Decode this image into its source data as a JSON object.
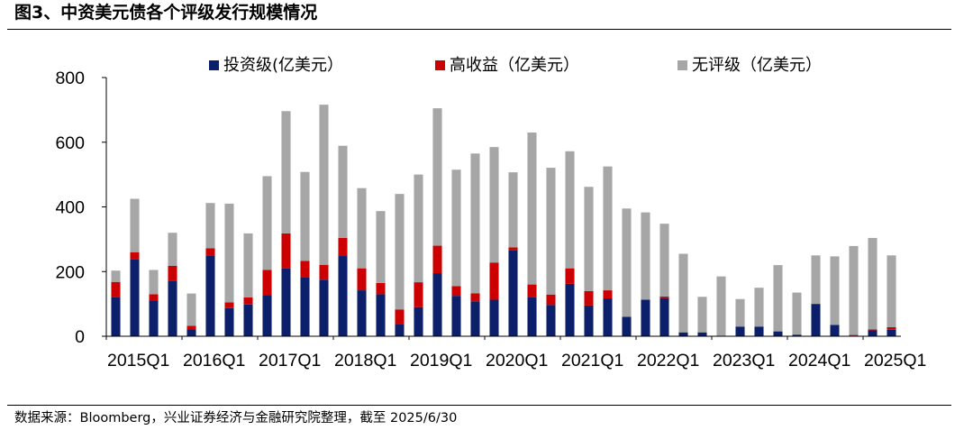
{
  "title": "图3、中资美元债各个评级发行规模情况",
  "source": "数据来源：Bloomberg，兴业证券经济与金融研究院整理，截至 2025/6/30",
  "chart_data": {
    "type": "bar",
    "stacked": true,
    "title": "",
    "xlabel": "",
    "ylabel": "",
    "ylim": [
      0,
      800
    ],
    "yticks": [
      0,
      200,
      400,
      600,
      800
    ],
    "legend_position": "top",
    "categories": [
      "2015Q1",
      "2015Q2",
      "2015Q3",
      "2015Q4",
      "2016Q1",
      "2016Q2",
      "2016Q3",
      "2016Q4",
      "2017Q1",
      "2017Q2",
      "2017Q3",
      "2017Q4",
      "2018Q1",
      "2018Q2",
      "2018Q3",
      "2018Q4",
      "2019Q1",
      "2019Q2",
      "2019Q3",
      "2019Q4",
      "2020Q1",
      "2020Q2",
      "2020Q3",
      "2020Q4",
      "2021Q1",
      "2021Q2",
      "2021Q3",
      "2021Q4",
      "2022Q1",
      "2022Q2",
      "2022Q3",
      "2022Q4",
      "2023Q1",
      "2023Q2",
      "2023Q3",
      "2023Q4",
      "2024Q1",
      "2024Q2",
      "2024Q3",
      "2024Q4",
      "2025Q1",
      "2025Q2"
    ],
    "xtick_labels": [
      "2015Q1",
      "2016Q1",
      "2017Q1",
      "2018Q1",
      "2019Q1",
      "2020Q1",
      "2021Q1",
      "2022Q1",
      "2023Q1",
      "2024Q1",
      "2025Q1"
    ],
    "series": [
      {
        "name": "投资级(亿美元）",
        "color": "#0c1f6b",
        "values": [
          120,
          238,
          110,
          172,
          22,
          250,
          87,
          98,
          127,
          210,
          183,
          175,
          248,
          142,
          130,
          38,
          90,
          195,
          125,
          108,
          113,
          265,
          120,
          97,
          162,
          95,
          117,
          60,
          113,
          118,
          12,
          12,
          0,
          30,
          30,
          15,
          5,
          100,
          35,
          2,
          18,
          20
        ]
      },
      {
        "name": "高收益（亿美元）",
        "color": "#cc0000",
        "values": [
          48,
          22,
          20,
          46,
          10,
          22,
          18,
          22,
          78,
          108,
          50,
          46,
          56,
          68,
          35,
          45,
          77,
          85,
          30,
          25,
          115,
          10,
          40,
          32,
          48,
          45,
          25,
          0,
          0,
          5,
          0,
          0,
          0,
          0,
          0,
          0,
          0,
          0,
          0,
          2,
          3,
          8
        ]
      },
      {
        "name": "无评级（亿美元）",
        "color": "#a6a6a6",
        "values": [
          35,
          165,
          75,
          102,
          100,
          140,
          305,
          198,
          290,
          378,
          275,
          495,
          285,
          248,
          222,
          357,
          333,
          425,
          360,
          432,
          357,
          232,
          470,
          392,
          362,
          322,
          383,
          335,
          270,
          225,
          243,
          110,
          185,
          85,
          120,
          205,
          130,
          150,
          212,
          275,
          283,
          222
        ]
      }
    ]
  }
}
